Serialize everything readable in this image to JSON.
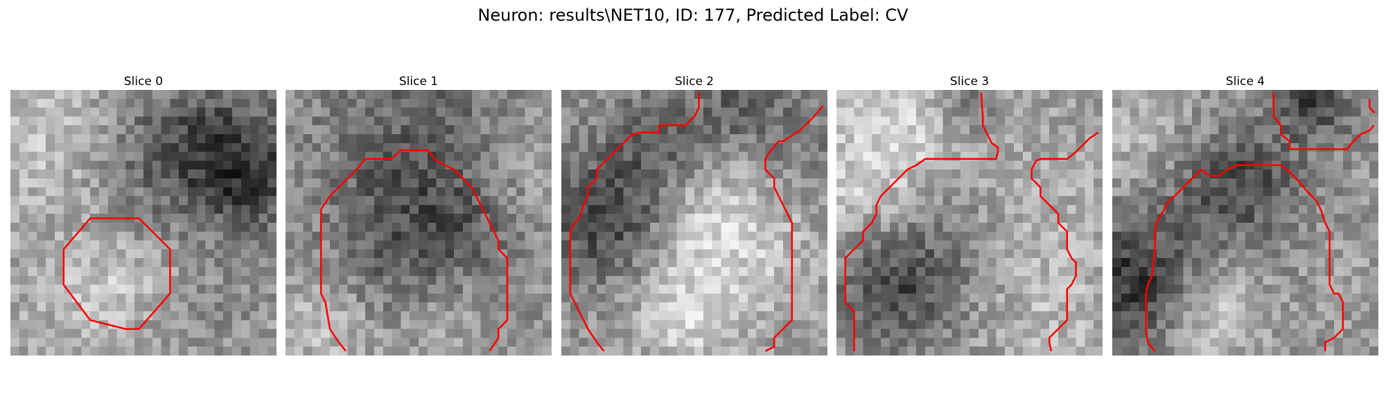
{
  "figure": {
    "title": "Neuron: results\\NET10, ID: 177, Predicted Label: CV"
  },
  "contour_color": "#ff0000",
  "image_style": "grayscale pixel-grid microscopy slice with red contour overlay",
  "panels": [
    {
      "title": "Slice 0"
    },
    {
      "title": "Slice 1"
    },
    {
      "title": "Slice 2"
    },
    {
      "title": "Slice 3"
    },
    {
      "title": "Slice 4"
    }
  ]
}
